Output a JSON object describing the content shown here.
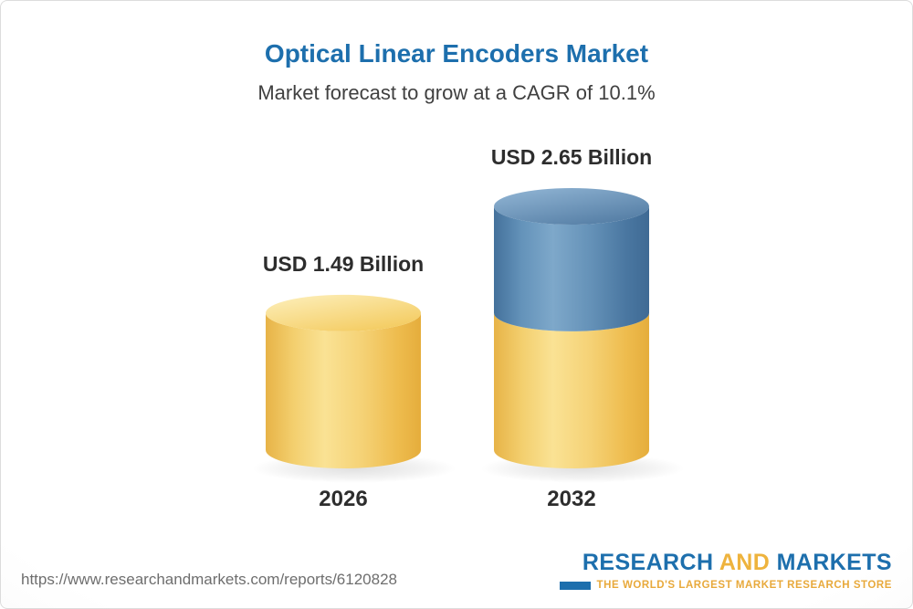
{
  "header": {
    "title": "Optical Linear Encoders Market",
    "subtitle": "Market forecast to grow at a CAGR of 10.1%"
  },
  "chart_data": {
    "type": "bar",
    "title": "Optical Linear Encoders Market",
    "subtitle": "Market forecast to grow at a CAGR of 10.1%",
    "categories": [
      "2026",
      "2032"
    ],
    "values": [
      1.49,
      2.65
    ],
    "value_labels": [
      "USD 1.49 Billion",
      "USD 2.65 Billion"
    ],
    "unit": "USD Billion",
    "cagr": "10.1%",
    "ylim": [
      0,
      2.65
    ],
    "grid": false,
    "colors": {
      "base_segment": "#f2c95f",
      "growth_segment": "#4f7da6",
      "value_label": "#2d2d2d",
      "category_label": "#2d2d2d"
    }
  },
  "footer": {
    "url": "https://www.researchandmarkets.com/reports/6120828",
    "logo": {
      "research": "RESEARCH",
      "and": "AND",
      "markets": "MARKETS",
      "tagline": "THE WORLD'S LARGEST MARKET RESEARCH STORE"
    }
  },
  "theme": {
    "title_color": "#1d6fad",
    "subtitle_color": "#404040",
    "logo_navy": "#1d6fad",
    "logo_gold": "#eeb33d",
    "url_color": "#6e6e6e"
  }
}
